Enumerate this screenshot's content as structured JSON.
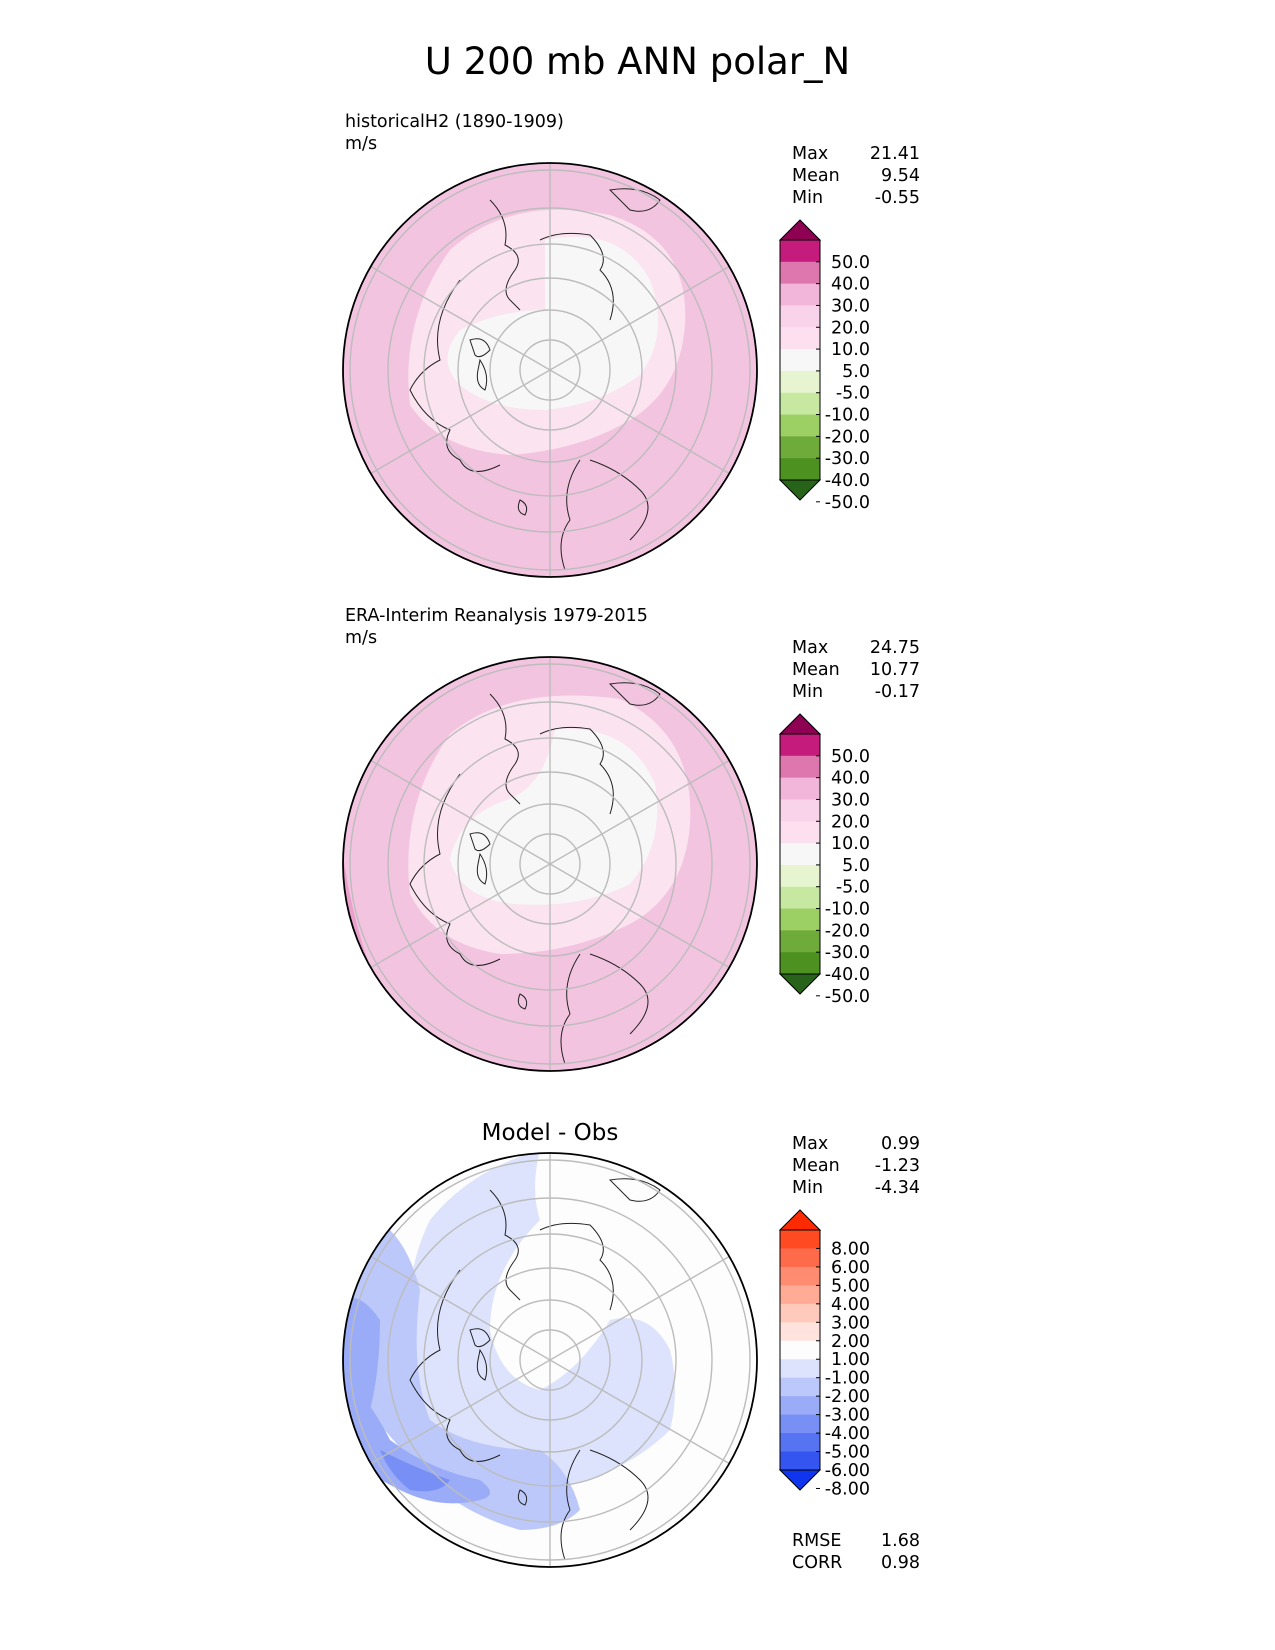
{
  "figure": {
    "title": "U 200 mb ANN polar_N"
  },
  "chart_data": [
    {
      "type": "heatmap",
      "projection": "north polar stereographic",
      "title": "historicalH2 (1890-1909)",
      "units": "m/s",
      "stats": {
        "max_label": "Max",
        "max": "21.41",
        "mean_label": "Mean",
        "mean": "9.54",
        "min_label": "Min",
        "min": "-0.55"
      },
      "colorbar": {
        "levels": [
          "50.0",
          "40.0",
          "30.0",
          "20.0",
          "10.0",
          "5.0",
          "-5.0",
          "-10.0",
          "-20.0",
          "-30.0",
          "-40.0",
          "-50.0"
        ],
        "colors": [
          "#8e0152",
          "#c51b7d",
          "#de77ae",
          "#f1b6da",
          "#f8d3ea",
          "#fde0ef",
          "#f7f7f7",
          "#e6f5d0",
          "#c6e8a0",
          "#9cd064",
          "#6fab3a",
          "#4d9221",
          "#276419"
        ],
        "extend": "both"
      },
      "field": {
        "summary": "pink (5 to 20 m/s) over most of the disk; near-white (-5 to 5) over the Arctic Ocean / pole"
      }
    },
    {
      "type": "heatmap",
      "projection": "north polar stereographic",
      "title": "ERA-Interim Reanalysis 1979-2015",
      "units": "m/s",
      "stats": {
        "max_label": "Max",
        "max": "24.75",
        "mean_label": "Mean",
        "mean": "10.77",
        "min_label": "Min",
        "min": "-0.17"
      },
      "colorbar": {
        "levels": [
          "50.0",
          "40.0",
          "30.0",
          "20.0",
          "10.0",
          "5.0",
          "-5.0",
          "-10.0",
          "-20.0",
          "-30.0",
          "-40.0",
          "-50.0"
        ],
        "colors": [
          "#8e0152",
          "#c51b7d",
          "#de77ae",
          "#f1b6da",
          "#f8d3ea",
          "#fde0ef",
          "#f7f7f7",
          "#e6f5d0",
          "#c6e8a0",
          "#9cd064",
          "#6fab3a",
          "#4d9221",
          "#276419"
        ],
        "extend": "both"
      },
      "field": {
        "summary": "pink (5 to 20 m/s) over most of the disk with 20 to 30 band in the lower-left edge; near-white over the pole"
      }
    },
    {
      "type": "heatmap",
      "projection": "north polar stereographic",
      "title": "Model - Obs",
      "stats": {
        "max_label": "Max",
        "max": "0.99",
        "mean_label": "Mean",
        "mean": "-1.23",
        "min_label": "Min",
        "min": "-4.34"
      },
      "metrics": {
        "rmse_label": "RMSE",
        "rmse": "1.68",
        "corr_label": "CORR",
        "corr": "0.98"
      },
      "colorbar": {
        "levels": [
          "8.00",
          "6.00",
          "5.00",
          "4.00",
          "3.00",
          "2.00",
          "1.00",
          "-1.00",
          "-2.00",
          "-3.00",
          "-4.00",
          "-5.00",
          "-6.00",
          "-8.00"
        ],
        "colors": [
          "#ff2a00",
          "#ff4a22",
          "#ff6a4a",
          "#ff8c70",
          "#ffab96",
          "#ffc9bc",
          "#ffe3dc",
          "#fdfdfd",
          "#dde3fc",
          "#bcc8fa",
          "#9aacf7",
          "#7890f5",
          "#5673f2",
          "#3455f0",
          "#1035ee"
        ],
        "extend": "both"
      },
      "field": {
        "summary": "mostly -1 to 1 (white) near the pole; -1 to -5 (blue) along the left/lower-left edge and over the Pacific sector"
      }
    }
  ]
}
